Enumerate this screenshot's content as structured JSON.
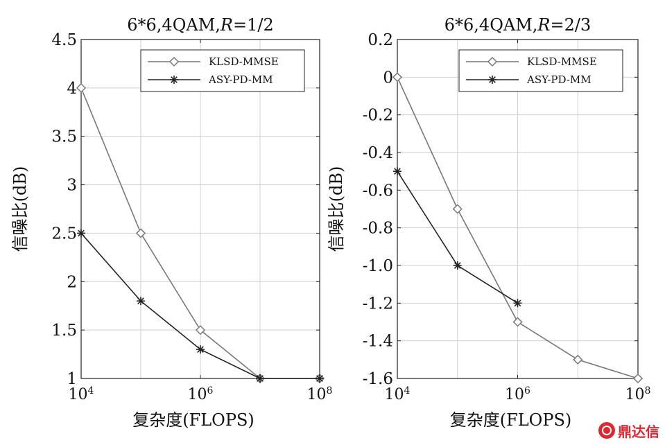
{
  "chart_data": [
    {
      "type": "line",
      "title": "6*6,4QAM,R=1/2",
      "title_parts": [
        "6*6,4QAM,",
        "R",
        "=1/2"
      ],
      "xlabel": "复杂度(FLOPS)",
      "ylabel": "信噪比(dB)",
      "xscale": "log",
      "xlim": [
        10000,
        100000000
      ],
      "ylim": [
        1,
        4.5
      ],
      "xticks": [
        10000,
        1000000,
        100000000
      ],
      "xtick_labels": [
        "10^4",
        "10^6",
        "10^8"
      ],
      "yticks": [
        1,
        1.5,
        2,
        2.5,
        3,
        3.5,
        4,
        4.5
      ],
      "ytick_labels": [
        "1",
        "1.5",
        "2",
        "2.5",
        "3",
        "3.5",
        "4",
        "4.5"
      ],
      "grid": true,
      "legend": "top-right",
      "series": [
        {
          "name": "KLSD-MMSE",
          "marker": "diamond",
          "color": "#777777",
          "x": [
            10000,
            100000,
            1000000,
            10000000,
            100000000
          ],
          "y": [
            4.0,
            2.5,
            1.5,
            1.0,
            1.0
          ]
        },
        {
          "name": "ASY-PD-MM",
          "marker": "asterisk",
          "color": "#222222",
          "x": [
            10000,
            100000,
            1000000,
            10000000,
            100000000
          ],
          "y": [
            2.5,
            1.8,
            1.3,
            1.0,
            1.0
          ]
        }
      ]
    },
    {
      "type": "line",
      "title": "6*6,4QAM,R=2/3",
      "title_parts": [
        "6*6,4QAM,",
        "R",
        "=2/3"
      ],
      "xlabel": "复杂度(FLOPS)",
      "ylabel": "信噪比(dB)",
      "xscale": "log",
      "xlim": [
        10000,
        100000000
      ],
      "ylim": [
        -1.6,
        0.2
      ],
      "xticks": [
        10000,
        1000000,
        100000000
      ],
      "xtick_labels": [
        "10^4",
        "10^6",
        "10^8"
      ],
      "yticks": [
        -1.6,
        -1.4,
        -1.2,
        -1.0,
        -0.8,
        -0.6,
        -0.4,
        -0.2,
        0,
        0.2
      ],
      "ytick_labels": [
        "-1.6",
        "-1.4",
        "-1.2",
        "-1.0",
        "-0.8",
        "-0.6",
        "-0.4",
        "-0.2",
        "0",
        "0.2"
      ],
      "grid": true,
      "legend": "top-right",
      "series": [
        {
          "name": "KLSD-MMSE",
          "marker": "diamond",
          "color": "#777777",
          "x": [
            10000,
            100000,
            1000000,
            10000000,
            100000000
          ],
          "y": [
            0.0,
            -0.7,
            -1.3,
            -1.5,
            -1.6
          ]
        },
        {
          "name": "ASY-PD-MM",
          "marker": "asterisk",
          "color": "#222222",
          "x": [
            10000,
            100000,
            1000000
          ],
          "y": [
            -0.5,
            -1.0,
            -1.2
          ]
        }
      ]
    }
  ],
  "watermark": {
    "text": "鼎达信",
    "logo_icon": "dingdaxin-logo-icon"
  }
}
